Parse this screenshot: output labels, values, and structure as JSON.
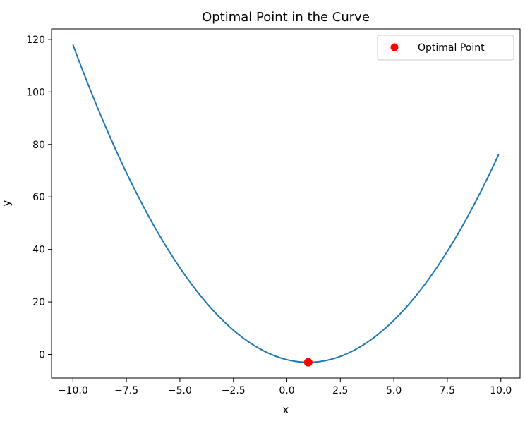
{
  "chart_data": {
    "type": "line",
    "title": "Optimal Point in the Curve",
    "xlabel": "x",
    "ylabel": "y",
    "xlim": [
      -11,
      10.9
    ],
    "ylim": [
      -9,
      124
    ],
    "xticks": [
      -10.0,
      -7.5,
      -5.0,
      -2.5,
      0.0,
      2.5,
      5.0,
      7.5,
      10.0
    ],
    "xtick_labels": [
      "−10.0",
      "−7.5",
      "−5.0",
      "−2.5",
      "0.0",
      "2.5",
      "5.0",
      "7.5",
      "10.0"
    ],
    "yticks": [
      0,
      20,
      40,
      60,
      80,
      100,
      120
    ],
    "ytick_labels": [
      "0",
      "20",
      "40",
      "60",
      "80",
      "100",
      "120"
    ],
    "grid": false,
    "legend_position": "top-right",
    "series": [
      {
        "type": "line",
        "color": "#1f77b4",
        "x": [
          -10.0,
          -9.0,
          -8.0,
          -7.0,
          -6.0,
          -5.0,
          -4.0,
          -3.0,
          -2.0,
          -1.0,
          0.0,
          1.0,
          2.0,
          3.0,
          4.0,
          5.0,
          6.0,
          7.0,
          8.0,
          9.0,
          9.9
        ],
        "y": [
          118.0,
          97.0,
          78.0,
          61.0,
          46.0,
          33.0,
          22.0,
          13.0,
          6.0,
          1.0,
          -2.0,
          -3.0,
          -2.0,
          1.0,
          6.0,
          13.0,
          22.0,
          33.0,
          46.0,
          61.0,
          76.2
        ]
      },
      {
        "type": "scatter",
        "name": "Optimal Point",
        "color": "#ff0000",
        "x": [
          1.0
        ],
        "y": [
          -3.0
        ]
      }
    ]
  }
}
